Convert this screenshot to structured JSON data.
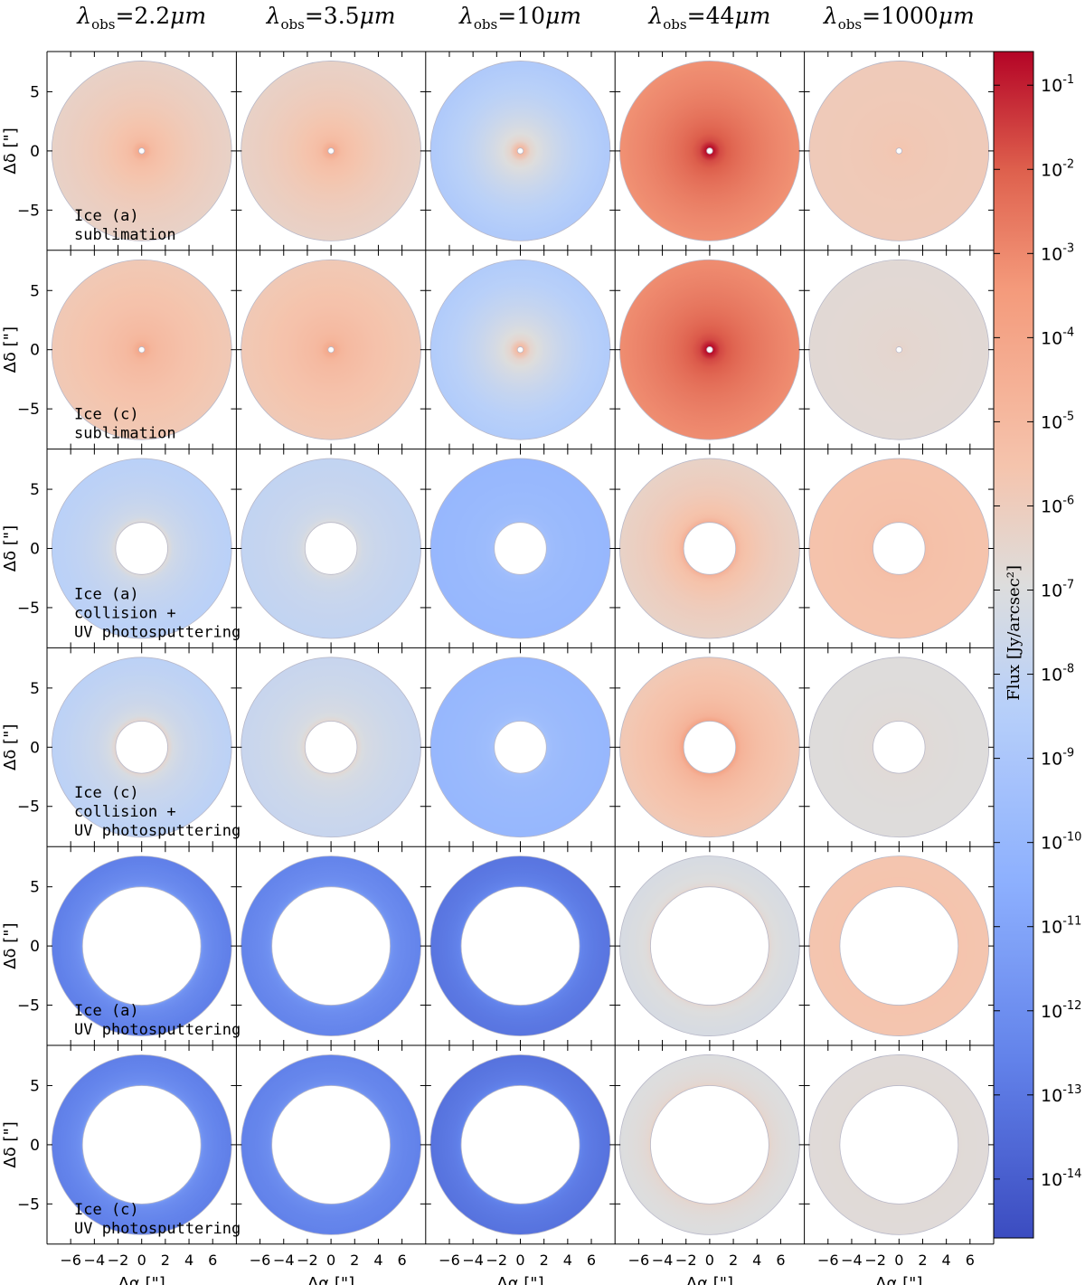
{
  "chart_data": {
    "type": "heatmap",
    "description_grid": "6 rows x 5 columns of simulated flux images",
    "columns": [
      {
        "title_prefix": "λ",
        "title_sub": "obs",
        "title_value": "=2.2",
        "title_unit": "μm",
        "wavelength_um": 2.2
      },
      {
        "title_prefix": "λ",
        "title_sub": "obs",
        "title_value": "=3.5",
        "title_unit": "μm",
        "wavelength_um": 3.5
      },
      {
        "title_prefix": "λ",
        "title_sub": "obs",
        "title_value": "=10",
        "title_unit": "μm",
        "wavelength_um": 10
      },
      {
        "title_prefix": "λ",
        "title_sub": "obs",
        "title_value": "=44",
        "title_unit": "μm",
        "wavelength_um": 44
      },
      {
        "title_prefix": "λ",
        "title_sub": "obs",
        "title_value": "=1000",
        "title_unit": "μm",
        "wavelength_um": 1000
      }
    ],
    "rows": [
      {
        "label_lines": [
          "Ice (a)",
          "sublimation"
        ],
        "inner_radius_arcsec": 0.25,
        "log_flux_center": [
          -4.2,
          -4.2,
          -4.8,
          -0.6,
          -5.6
        ],
        "log_flux_edge": [
          -6.3,
          -6.3,
          -8.8,
          -3.2,
          -5.9
        ]
      },
      {
        "label_lines": [
          "Ice (c)",
          "sublimation"
        ],
        "inner_radius_arcsec": 0.25,
        "log_flux_center": [
          -4.1,
          -4.1,
          -4.9,
          -0.6,
          -6.4
        ],
        "log_flux_edge": [
          -5.8,
          -5.8,
          -8.7,
          -3.1,
          -6.7
        ]
      },
      {
        "label_lines": [
          "Ice (a)",
          "collision +",
          "UV photosputtering"
        ],
        "inner_radius_arcsec": 2.2,
        "log_flux_center": [
          -6.8,
          -7.0,
          -9.4,
          -4.5,
          -5.2
        ],
        "log_flux_edge": [
          -8.3,
          -8.0,
          -10.0,
          -6.3,
          -5.5
        ]
      },
      {
        "label_lines": [
          "Ice (c)",
          "collision +",
          "UV photosputtering"
        ],
        "inner_radius_arcsec": 2.2,
        "log_flux_center": [
          -6.5,
          -6.6,
          -9.3,
          -3.8,
          -6.7
        ],
        "log_flux_edge": [
          -8.2,
          -7.8,
          -10.0,
          -5.8,
          -6.9
        ]
      },
      {
        "label_lines": [
          "Ice (a)",
          "UV photosputtering"
        ],
        "inner_radius_arcsec": 5.0,
        "log_flux_center": [
          -11.3,
          -11.4,
          -12.1,
          -6.5,
          -5.5
        ],
        "log_flux_edge": [
          -12.7,
          -12.5,
          -13.1,
          -7.2,
          -5.6
        ]
      },
      {
        "label_lines": [
          "Ice (c)",
          "UV photosputtering"
        ],
        "inner_radius_arcsec": 5.0,
        "log_flux_center": [
          -11.4,
          -11.6,
          -12.2,
          -6.3,
          -6.7
        ],
        "log_flux_edge": [
          -12.7,
          -12.6,
          -13.2,
          -7.0,
          -6.8
        ]
      }
    ],
    "outer_radius_arcsec": 7.6,
    "xlim": [
      -8,
      8
    ],
    "ylim": [
      -8,
      8
    ],
    "xticks": [
      -6,
      -4,
      -2,
      0,
      2,
      4,
      6
    ],
    "xtick_labels": [
      "−6",
      "−4",
      "−2",
      "0",
      "2",
      "4",
      "6"
    ],
    "yticks": [
      5,
      0,
      -5
    ],
    "ytick_labels": [
      "5",
      "0",
      "−5"
    ],
    "xlabel": "Δα [\"]",
    "ylabel": "Δδ [\"]",
    "colorbar": {
      "label": "Flux [Jy/arcsec²]",
      "scale": "log",
      "vmin_exp": -14.7,
      "vmax_exp": -0.6,
      "colormap": "coolwarm",
      "tick_base": "10",
      "tick_exponents": [
        "-1",
        "-2",
        "-3",
        "-4",
        "-5",
        "-6",
        "-7",
        "-8",
        "-9",
        "-10",
        "-11",
        "-12",
        "-13",
        "-14"
      ]
    }
  }
}
